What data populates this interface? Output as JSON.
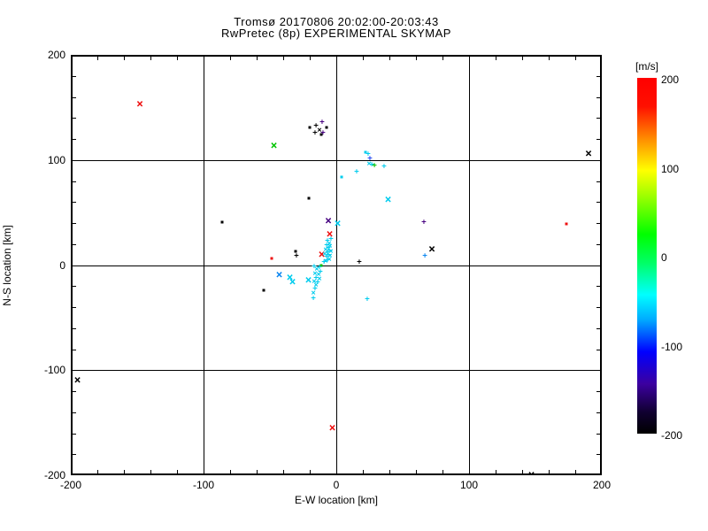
{
  "title": {
    "line1": "Tromsø 20170806 20:02:00-20:03:43",
    "line2": "RwPretec (8p) EXPERIMENTAL SKYMAP"
  },
  "chart_data": {
    "type": "scatter",
    "xlabel": "E-W location [km]",
    "ylabel": "N-S location [km]",
    "xlim": [
      -200,
      200
    ],
    "ylim": [
      -200,
      200
    ],
    "x_ticks": [
      -200,
      -100,
      0,
      100,
      200
    ],
    "y_ticks": [
      -200,
      -100,
      0,
      100,
      200
    ],
    "minor_tick_step": 20,
    "grid": true,
    "palette": {
      "red": "#ee1010",
      "black": "#000000",
      "green": "#00c400",
      "cyan": "#00ccee",
      "blue": "#0b86f0",
      "royal": "#2248f0",
      "purple": "#460080"
    },
    "colorbar": {
      "label": "[m/s]",
      "ticks": [
        200,
        100,
        0,
        -100,
        -200
      ],
      "min": -200,
      "max": 200,
      "stops": [
        {
          "pos": 0,
          "color": "#ff0000"
        },
        {
          "pos": 8,
          "color": "#ff1000"
        },
        {
          "pos": 18,
          "color": "#ff9800"
        },
        {
          "pos": 26,
          "color": "#ffff00"
        },
        {
          "pos": 33,
          "color": "#a0ff00"
        },
        {
          "pos": 44,
          "color": "#00ff00"
        },
        {
          "pos": 52,
          "color": "#00ff66"
        },
        {
          "pos": 61,
          "color": "#00ffff"
        },
        {
          "pos": 68,
          "color": "#00aaff"
        },
        {
          "pos": 77,
          "color": "#0000ff"
        },
        {
          "pos": 86,
          "color": "#3c00a0"
        },
        {
          "pos": 94,
          "color": "#100030"
        },
        {
          "pos": 100,
          "color": "#000000"
        }
      ]
    },
    "points": [
      {
        "x": -148,
        "y": 153,
        "c": "red",
        "m": "x",
        "s": "L"
      },
      {
        "x": 190,
        "y": 106,
        "c": "black",
        "m": "x",
        "s": "L"
      },
      {
        "x": -47,
        "y": 113,
        "c": "green",
        "m": "x",
        "s": "L"
      },
      {
        "x": 39,
        "y": 62,
        "c": "cyan",
        "m": "x",
        "s": "L"
      },
      {
        "x": -6,
        "y": 42,
        "c": "purple",
        "m": "x",
        "s": "L"
      },
      {
        "x": 1,
        "y": 39,
        "c": "cyan",
        "m": "x",
        "s": "L"
      },
      {
        "x": -5,
        "y": 29,
        "c": "red",
        "m": "x",
        "s": "L"
      },
      {
        "x": -11,
        "y": 10,
        "c": "red",
        "m": "x",
        "s": "L"
      },
      {
        "x": -43,
        "y": -10,
        "c": "blue",
        "m": "x",
        "s": "L"
      },
      {
        "x": -35,
        "y": -12,
        "c": "cyan",
        "m": "x",
        "s": "L"
      },
      {
        "x": -33,
        "y": -16,
        "c": "cyan",
        "m": "x",
        "s": "L"
      },
      {
        "x": -21,
        "y": -15,
        "c": "cyan",
        "m": "x",
        "s": "L"
      },
      {
        "x": 72,
        "y": 15,
        "c": "black",
        "m": "x",
        "s": "L"
      },
      {
        "x": -195,
        "y": -110,
        "c": "black",
        "m": "x",
        "s": "L"
      },
      {
        "x": -3,
        "y": -155,
        "c": "red",
        "m": "x",
        "s": "L"
      },
      {
        "x": 147,
        "y": -200,
        "c": "black",
        "m": "x",
        "s": "L"
      },
      {
        "x": -10.7,
        "y": 135,
        "c": "purple",
        "m": "plus",
        "s": "S"
      },
      {
        "x": -15.3,
        "y": 132,
        "c": "black",
        "m": "plus",
        "s": "S"
      },
      {
        "x": -12.7,
        "y": 128,
        "c": "black",
        "m": "x",
        "s": "S"
      },
      {
        "x": -7.3,
        "y": 131,
        "c": "black",
        "m": "dot",
        "s": "S"
      },
      {
        "x": -20,
        "y": 131,
        "c": "black",
        "m": "dot",
        "s": "S"
      },
      {
        "x": -16,
        "y": 125,
        "c": "black",
        "m": "plus",
        "s": "S"
      },
      {
        "x": -11.3,
        "y": 124,
        "c": "black",
        "m": "dot",
        "s": "S"
      },
      {
        "x": -10,
        "y": 125,
        "c": "purple",
        "m": "plus",
        "s": "S"
      },
      {
        "x": 22,
        "y": 107,
        "c": "cyan",
        "m": "dot",
        "s": "S"
      },
      {
        "x": 24,
        "y": 105,
        "c": "cyan",
        "m": "plus",
        "s": "S"
      },
      {
        "x": 25.3,
        "y": 101,
        "c": "royal",
        "m": "plus",
        "s": "S"
      },
      {
        "x": 24.7,
        "y": 96,
        "c": "cyan",
        "m": "x",
        "s": "S"
      },
      {
        "x": 26.7,
        "y": 95,
        "c": "cyan",
        "m": "plus",
        "s": "S"
      },
      {
        "x": 28.7,
        "y": 94,
        "c": "green",
        "m": "plus",
        "s": "S"
      },
      {
        "x": 36,
        "y": 93,
        "c": "cyan",
        "m": "plus",
        "s": "S"
      },
      {
        "x": 15.3,
        "y": 88,
        "c": "cyan",
        "m": "plus",
        "s": "S"
      },
      {
        "x": 4,
        "y": 84,
        "c": "cyan",
        "m": "dot",
        "s": "S"
      },
      {
        "x": -20.7,
        "y": 64,
        "c": "black",
        "m": "dot",
        "s": "S"
      },
      {
        "x": 66,
        "y": 40,
        "c": "purple",
        "m": "plus",
        "s": "S"
      },
      {
        "x": 66.7,
        "y": 8,
        "c": "blue",
        "m": "plus",
        "s": "S"
      },
      {
        "x": 173,
        "y": 39,
        "c": "red",
        "m": "dot",
        "s": "S"
      },
      {
        "x": 17.3,
        "y": 2,
        "c": "black",
        "m": "plus",
        "s": "S"
      },
      {
        "x": -86,
        "y": 41,
        "c": "black",
        "m": "dot",
        "s": "S"
      },
      {
        "x": -48.7,
        "y": 6,
        "c": "red",
        "m": "dot",
        "s": "S"
      },
      {
        "x": -30.7,
        "y": 13,
        "c": "black",
        "m": "dot",
        "s": "S"
      },
      {
        "x": -30,
        "y": 8,
        "c": "black",
        "m": "plus",
        "s": "S"
      },
      {
        "x": -54.7,
        "y": -24,
        "c": "black",
        "m": "dot",
        "s": "S"
      },
      {
        "x": -6.7,
        "y": 22,
        "c": "cyan",
        "m": "plus",
        "s": "S"
      },
      {
        "x": -4,
        "y": 24,
        "c": "cyan",
        "m": "plus",
        "s": "S"
      },
      {
        "x": -5.3,
        "y": 20,
        "c": "cyan",
        "m": "x",
        "s": "S"
      },
      {
        "x": -7.3,
        "y": 18,
        "c": "cyan",
        "m": "plus",
        "s": "S"
      },
      {
        "x": -4.7,
        "y": 17,
        "c": "cyan",
        "m": "x",
        "s": "S"
      },
      {
        "x": -6,
        "y": 16,
        "c": "cyan",
        "m": "plus",
        "s": "S"
      },
      {
        "x": -8,
        "y": 14,
        "c": "cyan",
        "m": "x",
        "s": "S"
      },
      {
        "x": -5.3,
        "y": 13,
        "c": "cyan",
        "m": "plus",
        "s": "S"
      },
      {
        "x": -4,
        "y": 12,
        "c": "cyan",
        "m": "x",
        "s": "S"
      },
      {
        "x": -6.7,
        "y": 11,
        "c": "cyan",
        "m": "plus",
        "s": "S"
      },
      {
        "x": -8.7,
        "y": 10,
        "c": "cyan",
        "m": "x",
        "s": "S"
      },
      {
        "x": -6,
        "y": 9,
        "c": "cyan",
        "m": "plus",
        "s": "S"
      },
      {
        "x": -4.7,
        "y": 8,
        "c": "cyan",
        "m": "x",
        "s": "S"
      },
      {
        "x": -7.3,
        "y": 7,
        "c": "cyan",
        "m": "plus",
        "s": "S"
      },
      {
        "x": -5.3,
        "y": 5,
        "c": "cyan",
        "m": "x",
        "s": "S"
      },
      {
        "x": -6.7,
        "y": 4,
        "c": "cyan",
        "m": "plus",
        "s": "S"
      },
      {
        "x": -8,
        "y": 3,
        "c": "cyan",
        "m": "x",
        "s": "S"
      },
      {
        "x": -9.3,
        "y": 2,
        "c": "cyan",
        "m": "plus",
        "s": "S"
      },
      {
        "x": -11.3,
        "y": 0,
        "c": "green",
        "m": "dot",
        "s": "S"
      },
      {
        "x": -12.7,
        "y": -3,
        "c": "cyan",
        "m": "plus",
        "s": "S"
      },
      {
        "x": -16.7,
        "y": -2,
        "c": "cyan",
        "m": "plus",
        "s": "S"
      },
      {
        "x": -14.7,
        "y": -5,
        "c": "cyan",
        "m": "x",
        "s": "S"
      },
      {
        "x": -12,
        "y": -7,
        "c": "cyan",
        "m": "plus",
        "s": "S"
      },
      {
        "x": -16,
        "y": -9,
        "c": "cyan",
        "m": "x",
        "s": "S"
      },
      {
        "x": -13.3,
        "y": -10,
        "c": "cyan",
        "m": "x",
        "s": "S"
      },
      {
        "x": -15.3,
        "y": -13,
        "c": "cyan",
        "m": "plus",
        "s": "S"
      },
      {
        "x": -12.7,
        "y": -14,
        "c": "cyan",
        "m": "x",
        "s": "S"
      },
      {
        "x": -16.7,
        "y": -16,
        "c": "cyan",
        "m": "x",
        "s": "S"
      },
      {
        "x": -14,
        "y": -17,
        "c": "cyan",
        "m": "plus",
        "s": "S"
      },
      {
        "x": -15.3,
        "y": -20,
        "c": "cyan",
        "m": "x",
        "s": "S"
      },
      {
        "x": -16,
        "y": -23,
        "c": "cyan",
        "m": "plus",
        "s": "S"
      },
      {
        "x": -17.3,
        "y": -27,
        "c": "cyan",
        "m": "x",
        "s": "S"
      },
      {
        "x": -17.3,
        "y": -32,
        "c": "cyan",
        "m": "plus",
        "s": "S"
      },
      {
        "x": 23.3,
        "y": -33,
        "c": "cyan",
        "m": "plus",
        "s": "S"
      }
    ]
  }
}
